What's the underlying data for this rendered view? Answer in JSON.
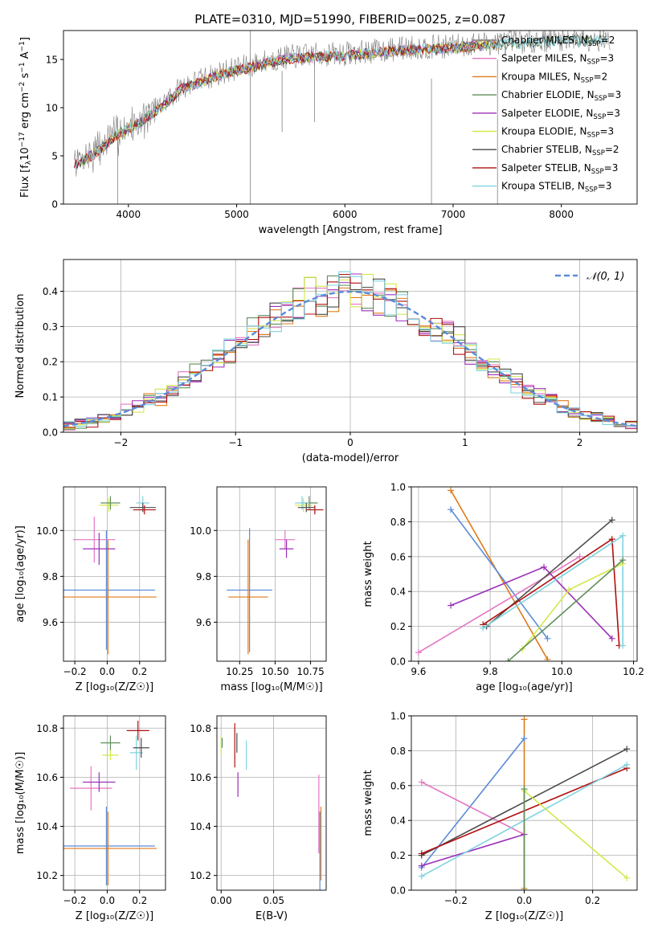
{
  "title": "PLATE=0310, MJD=51990, FIBERID=0025, z=0.087",
  "chart_data": [
    {
      "type": "line",
      "id": "spectrum",
      "xlabel": "wavelength [Angstrom, rest frame]",
      "ylabel_parts": [
        "Flux [f",
        "λ",
        "10",
        "−17",
        " erg cm",
        "−2",
        " s",
        "−1",
        " A",
        "−1",
        "]"
      ],
      "xlim": [
        3400,
        8700
      ],
      "ylim": [
        0,
        18
      ],
      "xticks": [
        4000,
        5000,
        6000,
        7000,
        8000
      ],
      "yticks": [
        0,
        5,
        10,
        15
      ],
      "observed_color": "#808080",
      "continuum_knots": [
        [
          3500,
          4.2
        ],
        [
          3700,
          5.5
        ],
        [
          3900,
          7.4
        ],
        [
          4100,
          8.6
        ],
        [
          4300,
          10.2
        ],
        [
          4500,
          12.2
        ],
        [
          4700,
          13.0
        ],
        [
          4900,
          13.8
        ],
        [
          5100,
          14.3
        ],
        [
          5300,
          14.9
        ],
        [
          5500,
          15.3
        ],
        [
          5800,
          15.5
        ],
        [
          6000,
          15.6
        ],
        [
          6300,
          15.9
        ],
        [
          6600,
          16.2
        ],
        [
          6900,
          16.3
        ],
        [
          7200,
          16.6
        ],
        [
          7500,
          16.8
        ],
        [
          7800,
          17.0
        ],
        [
          8100,
          17.2
        ],
        [
          8500,
          17.1
        ]
      ],
      "spikes": [
        {
          "x": 5125,
          "y0": 0,
          "y1": 18
        },
        {
          "x": 3900,
          "y0": 0,
          "y1": 9
        },
        {
          "x": 6800,
          "y0": 0,
          "y1": 13
        },
        {
          "x": 7410,
          "y0": 0,
          "y1": 15
        },
        {
          "x": 5420,
          "y0": 7.5,
          "y1": 13.8
        },
        {
          "x": 5720,
          "y0": 8.5,
          "y1": 15
        }
      ],
      "legend_position": "upper right",
      "series": [
        {
          "base": "Chabrier MILES, N",
          "sub": "SSP",
          "tail": "=2",
          "color": "#7f7f7f"
        },
        {
          "base": "Salpeter MILES, N",
          "sub": "SSP",
          "tail": "=3",
          "color": "#e377c2"
        },
        {
          "base": "Kroupa MILES, N",
          "sub": "SSP",
          "tail": "=2",
          "color": "#e07b1a"
        },
        {
          "base": "Chabrier ELODIE, N",
          "sub": "SSP",
          "tail": "=3",
          "color": "#5f8f5a"
        },
        {
          "base": "Salpeter ELODIE, N",
          "sub": "SSP",
          "tail": "=3",
          "color": "#9b30b8"
        },
        {
          "base": "Kroupa ELODIE, N",
          "sub": "SSP",
          "tail": "=3",
          "color": "#d4e84a"
        },
        {
          "base": "Chabrier STELIB, N",
          "sub": "SSP",
          "tail": "=2",
          "color": "#4a4a4a"
        },
        {
          "base": "Salpeter STELIB, N",
          "sub": "SSP",
          "tail": "=3",
          "color": "#b01010"
        },
        {
          "base": "Kroupa STELIB, N",
          "sub": "SSP",
          "tail": "=3",
          "color": "#7fd3e0"
        }
      ]
    },
    {
      "type": "line",
      "id": "residuals",
      "xlabel": "(data-model)/error",
      "ylabel": "Normed distribution",
      "xlim": [
        -2.5,
        2.5
      ],
      "ylim": [
        0,
        0.49
      ],
      "xticks": [
        -2,
        -1,
        0,
        1,
        2
      ],
      "yticks": [
        0.0,
        0.1,
        0.2,
        0.3,
        0.4
      ],
      "grid": true,
      "bin_width": 0.1,
      "gaussian": {
        "label": "𝒩(0, 1)",
        "mean": 0,
        "sigma": 1,
        "color": "#5b8bd8"
      },
      "histogram_colors": [
        "#e377c2",
        "#e07b1a",
        "#5f8f5a",
        "#9b30b8",
        "#d4e84a",
        "#4a4a4a",
        "#b01010",
        "#7fd3e0"
      ],
      "legend_position": "upper right"
    },
    {
      "type": "scatter",
      "id": "age-vs-Z",
      "xlabel": "Z [log₁₀(Z/Z☉)]",
      "ylabel": "age  [log₁₀(age/yr)]",
      "xlim": [
        -0.27,
        0.36
      ],
      "ylim": [
        9.43,
        10.19
      ],
      "xticks": [
        -0.2,
        0.0,
        0.2
      ],
      "yticks": [
        9.6,
        9.8,
        10.0
      ],
      "grid": true,
      "errorbars": [
        {
          "x": -0.005,
          "y": 9.74,
          "xerr": 0.3,
          "yerr": 0.26,
          "color": "#5b8bd8"
        },
        {
          "x": 0.005,
          "y": 9.71,
          "xerr": 0.3,
          "yerr": 0.25,
          "color": "#e07b1a"
        },
        {
          "x": -0.08,
          "y": 9.96,
          "xerr": 0.13,
          "yerr": 0.1,
          "color": "#e377c2"
        },
        {
          "x": -0.05,
          "y": 9.92,
          "xerr": 0.1,
          "yerr": 0.07,
          "color": "#9b30b8"
        },
        {
          "x": 0.01,
          "y": 10.11,
          "xerr": 0.06,
          "yerr": 0.03,
          "color": "#d4e84a"
        },
        {
          "x": 0.02,
          "y": 10.12,
          "xerr": 0.06,
          "yerr": 0.03,
          "color": "#5f8f5a"
        },
        {
          "x": 0.22,
          "y": 10.12,
          "xerr": 0.04,
          "yerr": 0.03,
          "color": "#7fd3e0"
        },
        {
          "x": 0.22,
          "y": 10.1,
          "xerr": 0.08,
          "yerr": 0.02,
          "color": "#4a4a4a"
        },
        {
          "x": 0.23,
          "y": 10.09,
          "xerr": 0.07,
          "yerr": 0.02,
          "color": "#b01010"
        }
      ]
    },
    {
      "type": "scatter",
      "id": "age-vs-mass",
      "xlabel": "mass [log₁₀(M/M☉)]",
      "ylabel": "",
      "xlim": [
        10.09,
        10.86
      ],
      "ylim": [
        9.43,
        10.19
      ],
      "xticks": [
        10.25,
        10.5,
        10.75
      ],
      "xticklabels": [
        "10.25",
        "10.50",
        "10.75"
      ],
      "yticks": [
        9.6,
        9.8,
        10.0
      ],
      "grid": true,
      "errorbars": [
        {
          "x": 10.32,
          "y": 9.74,
          "xerr": 0.16,
          "yerr": 0.27,
          "color": "#5b8bd8"
        },
        {
          "x": 10.31,
          "y": 9.71,
          "xerr": 0.14,
          "yerr": 0.25,
          "color": "#e07b1a"
        },
        {
          "x": 10.57,
          "y": 9.96,
          "xerr": 0.07,
          "yerr": 0.04,
          "color": "#e377c2"
        },
        {
          "x": 10.58,
          "y": 9.92,
          "xerr": 0.05,
          "yerr": 0.04,
          "color": "#9b30b8"
        },
        {
          "x": 10.7,
          "y": 10.11,
          "xerr": 0.06,
          "yerr": 0.03,
          "color": "#d4e84a"
        },
        {
          "x": 10.74,
          "y": 10.12,
          "xerr": 0.06,
          "yerr": 0.03,
          "color": "#5f8f5a"
        },
        {
          "x": 10.69,
          "y": 10.12,
          "xerr": 0.05,
          "yerr": 0.03,
          "color": "#7fd3e0"
        },
        {
          "x": 10.72,
          "y": 10.1,
          "xerr": 0.06,
          "yerr": 0.02,
          "color": "#4a4a4a"
        },
        {
          "x": 10.78,
          "y": 10.09,
          "xerr": 0.06,
          "yerr": 0.02,
          "color": "#b01010"
        }
      ]
    },
    {
      "type": "line",
      "id": "weight-vs-age",
      "xlabel": "age  [log₁₀(age/yr)]",
      "ylabel": "mass weight",
      "xlim": [
        9.58,
        10.21
      ],
      "ylim": [
        0,
        1
      ],
      "xticks": [
        9.6,
        9.8,
        10.0,
        10.2
      ],
      "yticks": [
        0.0,
        0.2,
        0.4,
        0.6,
        0.8,
        1.0
      ],
      "grid": true,
      "series": [
        {
          "color": "#e07b1a",
          "points": [
            [
              9.69,
              0.98
            ],
            [
              9.96,
              0.01
            ]
          ]
        },
        {
          "color": "#5b8bd8",
          "points": [
            [
              9.69,
              0.87
            ],
            [
              9.96,
              0.13
            ]
          ]
        },
        {
          "color": "#e377c2",
          "points": [
            [
              9.6,
              0.05
            ],
            [
              10.05,
              0.6
            ]
          ]
        },
        {
          "color": "#9b30b8",
          "points": [
            [
              9.69,
              0.32
            ],
            [
              9.95,
              0.54
            ],
            [
              10.14,
              0.13
            ]
          ]
        },
        {
          "color": "#4a4a4a",
          "points": [
            [
              9.79,
              0.2
            ],
            [
              10.14,
              0.81
            ]
          ]
        },
        {
          "color": "#b01010",
          "points": [
            [
              9.78,
              0.21
            ],
            [
              10.14,
              0.7
            ],
            [
              10.16,
              0.09
            ]
          ]
        },
        {
          "color": "#7fd3e0",
          "points": [
            [
              9.78,
              0.19
            ],
            [
              10.17,
              0.72
            ],
            [
              10.17,
              0.09
            ]
          ]
        },
        {
          "color": "#d4e84a",
          "points": [
            [
              9.89,
              0.07
            ],
            [
              10.02,
              0.41
            ],
            [
              10.17,
              0.56
            ]
          ]
        },
        {
          "color": "#5f8f5a",
          "points": [
            [
              9.85,
              0.0
            ],
            [
              10.17,
              0.58
            ]
          ]
        }
      ]
    },
    {
      "type": "scatter",
      "id": "mass-vs-Z",
      "xlabel": "Z [log₁₀(Z/Z☉)]",
      "ylabel": "mass [log₁₀(M/M☉)]",
      "xlim": [
        -0.27,
        0.36
      ],
      "ylim": [
        10.14,
        10.85
      ],
      "xticks": [
        -0.2,
        0.0,
        0.2
      ],
      "yticks": [
        10.2,
        10.4,
        10.6,
        10.8
      ],
      "grid": true,
      "errorbars": [
        {
          "x": -0.005,
          "y": 10.32,
          "xerr": 0.3,
          "yerr": 0.16,
          "color": "#5b8bd8"
        },
        {
          "x": 0.005,
          "y": 10.31,
          "xerr": 0.3,
          "yerr": 0.15,
          "color": "#e07b1a"
        },
        {
          "x": -0.1,
          "y": 10.555,
          "xerr": 0.13,
          "yerr": 0.09,
          "color": "#e377c2"
        },
        {
          "x": -0.05,
          "y": 10.58,
          "xerr": 0.1,
          "yerr": 0.04,
          "color": "#9b30b8"
        },
        {
          "x": 0.02,
          "y": 10.69,
          "xerr": 0.05,
          "yerr": 0.02,
          "color": "#d4e84a"
        },
        {
          "x": 0.02,
          "y": 10.74,
          "xerr": 0.06,
          "yerr": 0.03,
          "color": "#5f8f5a"
        },
        {
          "x": 0.18,
          "y": 10.7,
          "xerr": 0.04,
          "yerr": 0.07,
          "color": "#7fd3e0"
        },
        {
          "x": 0.21,
          "y": 10.72,
          "xerr": 0.05,
          "yerr": 0.04,
          "color": "#4a4a4a"
        },
        {
          "x": 0.19,
          "y": 10.79,
          "xerr": 0.07,
          "yerr": 0.04,
          "color": "#b01010"
        }
      ]
    },
    {
      "type": "scatter",
      "id": "mass-vs-ebv",
      "xlabel": "E(B-V)",
      "ylabel": "",
      "xlim": [
        -0.004,
        0.1
      ],
      "ylim": [
        10.14,
        10.85
      ],
      "xticks": [
        0.0,
        0.05
      ],
      "xticklabels": [
        "0.00",
        "0.05"
      ],
      "yticks": [
        10.2,
        10.4,
        10.6,
        10.8
      ],
      "grid": true,
      "errorbars": [
        {
          "x": 0.0,
          "y": 10.73,
          "xerr": 0,
          "yerr": 0.04,
          "color": "#d4e84a"
        },
        {
          "x": 0.001,
          "y": 10.74,
          "xerr": 0,
          "yerr": 0.02,
          "color": "#5f8f5a"
        },
        {
          "x": 0.013,
          "y": 10.73,
          "xerr": 0,
          "yerr": 0.09,
          "color": "#b01010"
        },
        {
          "x": 0.015,
          "y": 10.74,
          "xerr": 0,
          "yerr": 0.04,
          "color": "#4a4a4a"
        },
        {
          "x": 0.016,
          "y": 10.57,
          "xerr": 0,
          "yerr": 0.05,
          "color": "#9b30b8"
        },
        {
          "x": 0.024,
          "y": 10.69,
          "xerr": 0,
          "yerr": 0.06,
          "color": "#7fd3e0"
        },
        {
          "x": 0.093,
          "y": 10.45,
          "xerr": 0,
          "yerr": 0.16,
          "color": "#e377c2"
        },
        {
          "x": 0.094,
          "y": 10.3,
          "xerr": 0,
          "yerr": 0.16,
          "color": "#5b8bd8"
        },
        {
          "x": 0.095,
          "y": 10.33,
          "xerr": 0,
          "yerr": 0.15,
          "color": "#e07b1a"
        }
      ]
    },
    {
      "type": "line",
      "id": "weight-vs-Z",
      "xlabel": "Z [log₁₀(Z/Z☉)]",
      "ylabel": "mass weight",
      "xlim": [
        -0.33,
        0.33
      ],
      "ylim": [
        0,
        1
      ],
      "xticks": [
        -0.2,
        0.0,
        0.2
      ],
      "xticklabels": [
        "−0.2",
        "0.0",
        "0.2"
      ],
      "yticks": [
        0.0,
        0.2,
        0.4,
        0.6,
        0.8,
        1.0
      ],
      "grid": true,
      "series": [
        {
          "color": "#e07b1a",
          "points": [
            [
              0.0,
              0.98
            ],
            [
              0.0,
              0.01
            ]
          ]
        },
        {
          "color": "#5b8bd8",
          "points": [
            [
              -0.3,
              0.13
            ],
            [
              0.0,
              0.87
            ]
          ]
        },
        {
          "color": "#e377c2",
          "points": [
            [
              -0.3,
              0.62
            ],
            [
              0.0,
              0.32
            ]
          ]
        },
        {
          "color": "#9b30b8",
          "points": [
            [
              -0.3,
              0.14
            ],
            [
              0.0,
              0.32
            ]
          ]
        },
        {
          "color": "#4a4a4a",
          "points": [
            [
              -0.3,
              0.2
            ],
            [
              0.3,
              0.81
            ]
          ]
        },
        {
          "color": "#b01010",
          "points": [
            [
              -0.3,
              0.21
            ],
            [
              0.3,
              0.7
            ]
          ]
        },
        {
          "color": "#7fd3e0",
          "points": [
            [
              -0.3,
              0.08
            ],
            [
              0.3,
              0.72
            ]
          ]
        },
        {
          "color": "#d4e84a",
          "points": [
            [
              0.0,
              0.57
            ],
            [
              0.3,
              0.07
            ]
          ]
        },
        {
          "color": "#5f8f5a",
          "points": [
            [
              0.0,
              0.58
            ],
            [
              0.0,
              0.0
            ]
          ]
        }
      ]
    }
  ]
}
